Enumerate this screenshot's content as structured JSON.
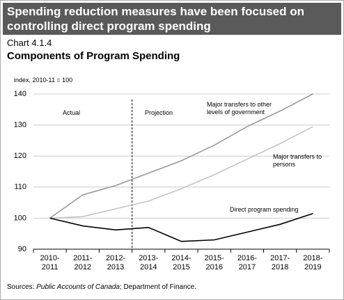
{
  "header": {
    "title": "Spending reduction measures have been focused on controlling direct program spending"
  },
  "chart_label": "Chart 4.1.4",
  "source": {
    "prefix": "Sources: ",
    "italic": "Public Accounts of Canada",
    "suffix": "; Department of Finance."
  },
  "chart_data": {
    "type": "line",
    "title": "Components of Program Spending",
    "y_label": "index, 2010-11 = 100",
    "annotations": [
      "Actual",
      "Projection"
    ],
    "categories": [
      "2010-2011",
      "2011-2012",
      "2012-2013",
      "2013-2014",
      "2014-2015",
      "2015-2016",
      "2016-2017",
      "2017-2018",
      "2018-2019"
    ],
    "series": [
      {
        "name": "Major transfers to other levels of government",
        "color": "#9a9a9a",
        "values": [
          100,
          107.5,
          110.5,
          114.5,
          118.5,
          123.5,
          129.5,
          134.5,
          140
        ]
      },
      {
        "name": "Major transfers to persons",
        "color": "#c4c4c4",
        "values": [
          100,
          100.5,
          103,
          105.5,
          109.5,
          114,
          119,
          124,
          129.5
        ]
      },
      {
        "name": "Direct program spending",
        "color": "#000000",
        "values": [
          100,
          97.5,
          96.2,
          97,
          92.5,
          93,
          95.5,
          98,
          101.5
        ]
      }
    ],
    "ylim": [
      90,
      140
    ],
    "yticks": [
      90,
      100,
      110,
      120,
      130,
      140
    ],
    "grid": true
  }
}
